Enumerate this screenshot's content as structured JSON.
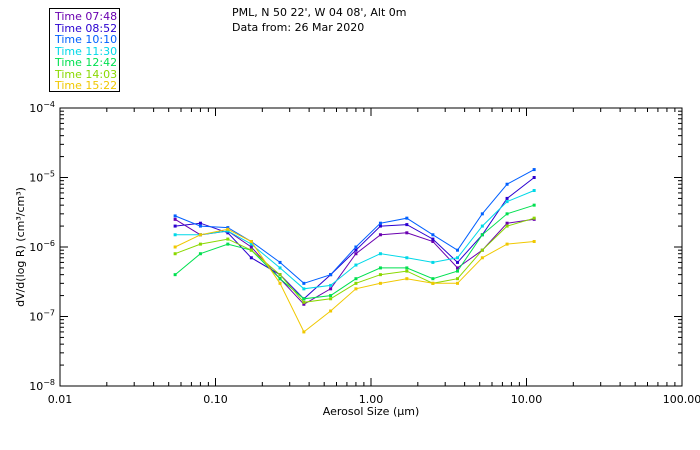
{
  "header": {
    "location": "PML, N 50 22', W 04 08', Alt 0m",
    "date_line": "Data from: 26 Mar 2020"
  },
  "legend": [
    {
      "label": "Time 07:48",
      "color": "#6a00b0"
    },
    {
      "label": "Time 08:52",
      "color": "#2a00d0"
    },
    {
      "label": "Time 10:10",
      "color": "#0060ff"
    },
    {
      "label": "Time 11:30",
      "color": "#00d8e8"
    },
    {
      "label": "Time 12:42",
      "color": "#00e050"
    },
    {
      "label": "Time 14:03",
      "color": "#8ad800"
    },
    {
      "label": "Time 15:22",
      "color": "#f0c800"
    }
  ],
  "chart_data": {
    "type": "line",
    "title": "",
    "xlabel": "Aerosol Size (μm)",
    "ylabel": "dV/d(log R) (cm³/cm³)",
    "xscale": "log",
    "yscale": "log",
    "xlim": [
      0.01,
      100
    ],
    "ylim": [
      1e-08,
      0.0001
    ],
    "x_ticks": [
      {
        "value": 0.01,
        "label": "0.01"
      },
      {
        "value": 0.1,
        "label": "0.10"
      },
      {
        "value": 1,
        "label": "1.00"
      },
      {
        "value": 10,
        "label": "10.00"
      },
      {
        "value": 100,
        "label": "100.00"
      }
    ],
    "y_ticks": [
      {
        "value": 1e-08,
        "mantissa": "10",
        "exponent": "−8"
      },
      {
        "value": 1e-07,
        "mantissa": "10",
        "exponent": "−7"
      },
      {
        "value": 1e-06,
        "mantissa": "10",
        "exponent": "−6"
      },
      {
        "value": 1e-05,
        "mantissa": "10",
        "exponent": "−5"
      },
      {
        "value": 0.0001,
        "mantissa": "10",
        "exponent": "−4"
      }
    ],
    "x": [
      0.055,
      0.08,
      0.12,
      0.17,
      0.26,
      0.37,
      0.55,
      0.8,
      1.15,
      1.7,
      2.5,
      3.6,
      5.2,
      7.5,
      11.2
    ],
    "series": [
      {
        "name": "Time 07:48",
        "color": "#6a00b0",
        "values": [
          2.5e-06,
          1.5e-06,
          1.7e-06,
          1e-06,
          3.5e-07,
          1.5e-07,
          2.5e-07,
          8e-07,
          1.5e-06,
          1.6e-06,
          1.2e-06,
          5e-07,
          9e-07,
          2.2e-06,
          2.5e-06
        ]
      },
      {
        "name": "Time 08:52",
        "color": "#2a00d0",
        "values": [
          2e-06,
          2.2e-06,
          1.6e-06,
          7e-07,
          4e-07,
          1.8e-07,
          4e-07,
          9e-07,
          2e-06,
          2.1e-06,
          1.3e-06,
          6e-07,
          1.5e-06,
          5e-06,
          1e-05
        ]
      },
      {
        "name": "Time 10:10",
        "color": "#0060ff",
        "values": [
          2.8e-06,
          2e-06,
          1.9e-06,
          1.2e-06,
          6e-07,
          3e-07,
          4e-07,
          1e-06,
          2.2e-06,
          2.6e-06,
          1.5e-06,
          9e-07,
          3e-06,
          8e-06,
          1.3e-05
        ]
      },
      {
        "name": "Time 11:30",
        "color": "#00d8e8",
        "values": [
          1.5e-06,
          1.5e-06,
          1.7e-06,
          1.1e-06,
          5e-07,
          2.5e-07,
          2.8e-07,
          5.5e-07,
          8e-07,
          7e-07,
          6e-07,
          7e-07,
          2e-06,
          4.5e-06,
          6.5e-06
        ]
      },
      {
        "name": "Time 12:42",
        "color": "#00e050",
        "values": [
          4e-07,
          8e-07,
          1.1e-06,
          9e-07,
          3.5e-07,
          1.8e-07,
          2e-07,
          3.5e-07,
          5e-07,
          5e-07,
          3.5e-07,
          4.5e-07,
          1.5e-06,
          3e-06,
          4e-06
        ]
      },
      {
        "name": "Time 14:03",
        "color": "#8ad800",
        "values": [
          8e-07,
          1.1e-06,
          1.3e-06,
          9e-07,
          4e-07,
          1.6e-07,
          1.8e-07,
          3e-07,
          4e-07,
          4.5e-07,
          3e-07,
          3.5e-07,
          9e-07,
          2e-06,
          2.6e-06
        ]
      },
      {
        "name": "Time 15:22",
        "color": "#f0c800",
        "values": [
          1e-06,
          1.5e-06,
          1.8e-06,
          1.2e-06,
          3e-07,
          6e-08,
          1.2e-07,
          2.5e-07,
          3e-07,
          3.5e-07,
          3e-07,
          3e-07,
          7e-07,
          1.1e-06,
          1.2e-06
        ]
      }
    ]
  }
}
